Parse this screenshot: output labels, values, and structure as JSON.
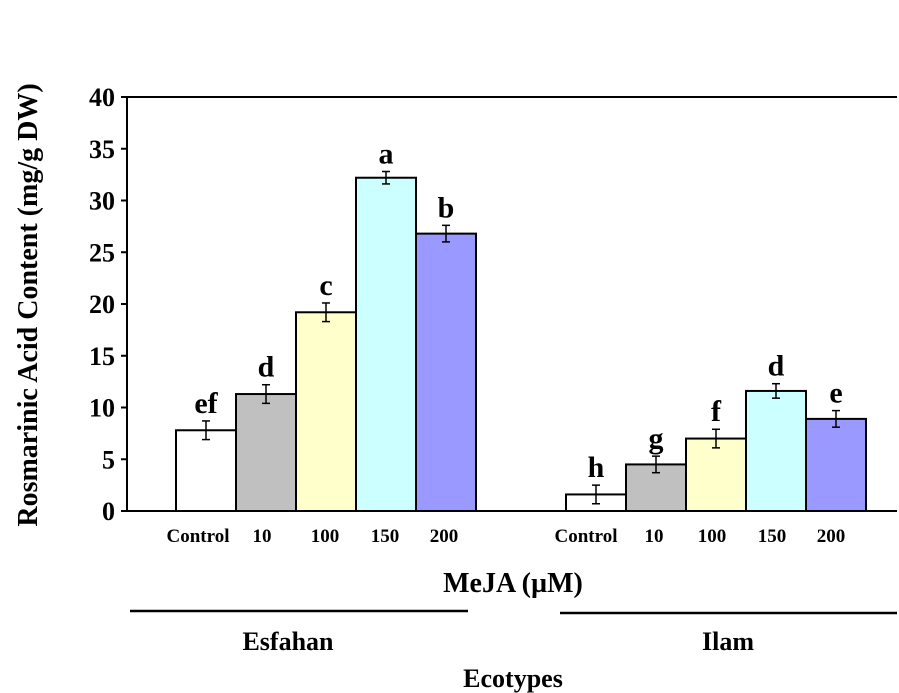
{
  "chart_data": {
    "type": "bar",
    "title": "",
    "ylabel": "Rosmarinic Acid Content (mg/g DW)",
    "xlabel": "MeJA (µM)",
    "ylim": [
      0,
      40
    ],
    "yticks": [
      "0",
      "5",
      "10",
      "15",
      "20",
      "25",
      "30",
      "35",
      "40"
    ],
    "group_axis_title": "Ecotypes",
    "categories": [
      "Control",
      "10",
      "100",
      "150",
      "200"
    ],
    "category_colors": [
      "#ffffff",
      "#c0c0c0",
      "#ffffcc",
      "#ccffff",
      "#9999ff"
    ],
    "groups": [
      {
        "name": "Esfahan",
        "values": [
          7.8,
          11.3,
          19.2,
          32.2,
          26.8
        ],
        "errors": [
          0.9,
          0.9,
          0.9,
          0.6,
          0.8
        ],
        "letters": [
          "ef",
          "d",
          "c",
          "a",
          "b"
        ]
      },
      {
        "name": "Ilam",
        "values": [
          1.6,
          4.5,
          7.0,
          11.6,
          8.9
        ],
        "errors": [
          0.9,
          0.8,
          0.9,
          0.7,
          0.8
        ],
        "letters": [
          "h",
          "g",
          "f",
          "d",
          "e"
        ]
      }
    ]
  }
}
